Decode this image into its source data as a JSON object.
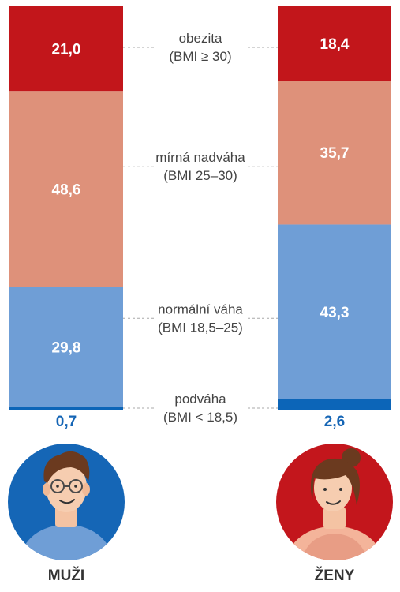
{
  "chart_data": {
    "type": "bar",
    "stacked": true,
    "orientation": "vertical",
    "groups": [
      {
        "label": "MUŽI",
        "values": [
          0.7,
          29.8,
          48.6,
          21.0
        ],
        "value_labels": [
          "0,7",
          "29,8",
          "48,6",
          "21,0"
        ]
      },
      {
        "label": "ŽENY",
        "values": [
          2.6,
          43.3,
          35.7,
          18.4
        ],
        "value_labels": [
          "2,6",
          "43,3",
          "35,7",
          "18,4"
        ]
      }
    ],
    "categories": [
      {
        "name": "podváha",
        "range": "(BMI < 18,5)",
        "color": "#0c65b8"
      },
      {
        "name": "normální váha",
        "range": "(BMI 18,5–25)",
        "color": "#6f9ed6"
      },
      {
        "name": "mírná nadváha",
        "range": "(BMI 25–30)",
        "color": "#de917a"
      },
      {
        "name": "obezita",
        "range": "(BMI ≥ 30)",
        "color": "#c2161b"
      }
    ],
    "label_color": "#1565b5",
    "grid": false,
    "legend": "center"
  },
  "icons": {
    "men": {
      "name": "man-avatar-icon",
      "background": "#1566b6"
    },
    "women": {
      "name": "woman-avatar-icon",
      "background": "#c3161c"
    }
  }
}
